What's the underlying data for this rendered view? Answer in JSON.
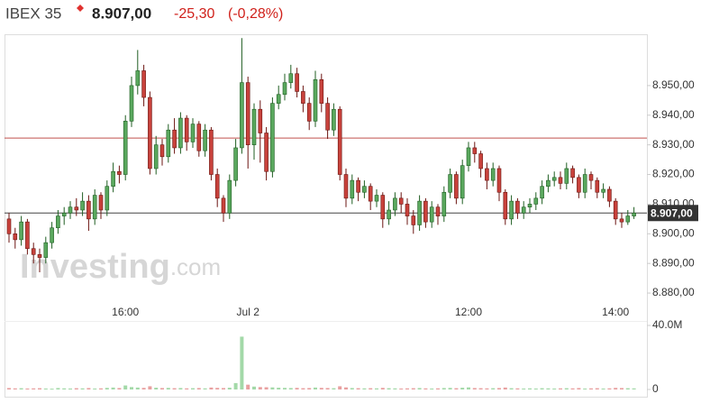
{
  "header": {
    "name": "IBEX 35",
    "price": "8.907,00",
    "change": "-25,30",
    "change_pct": "(-0,28%)"
  },
  "watermark": {
    "brand": "Investing",
    "suffix": ".com"
  },
  "chart_data": {
    "type": "candlestick",
    "categories": [
      null,
      null,
      null,
      null,
      null,
      null,
      null,
      null,
      null,
      null,
      null,
      null,
      null,
      null,
      null,
      null,
      null,
      null,
      null,
      "16:00",
      null,
      null,
      null,
      null,
      null,
      null,
      null,
      null,
      null,
      null,
      null,
      null,
      null,
      null,
      null,
      null,
      null,
      null,
      null,
      "Jul 2",
      null,
      null,
      null,
      null,
      null,
      null,
      null,
      null,
      null,
      null,
      null,
      null,
      null,
      null,
      null,
      null,
      null,
      null,
      null,
      null,
      null,
      null,
      null,
      null,
      null,
      null,
      null,
      null,
      null,
      null,
      null,
      null,
      null,
      null,
      null,
      "12:00",
      null,
      null,
      null,
      null,
      null,
      null,
      null,
      null,
      null,
      null,
      null,
      null,
      null,
      null,
      null,
      null,
      null,
      null,
      null,
      null,
      null,
      null,
      null,
      "14:00",
      null,
      null,
      null
    ],
    "open": [
      8905,
      8900,
      8898,
      8904,
      8895,
      8893,
      8892,
      8897,
      8902,
      8906,
      8907,
      8909,
      8908,
      8911,
      8905,
      8913,
      8908,
      8916,
      8921,
      8920,
      8938,
      8950,
      8955,
      8946,
      8922,
      8930,
      8926,
      8935,
      8929,
      8939,
      8931,
      8937,
      8928,
      8935,
      8920,
      8912,
      8907,
      8918,
      8929,
      8951,
      8930,
      8942,
      8934,
      8921,
      8944,
      8947,
      8951,
      8954,
      8948,
      8944,
      8938,
      8952,
      8944,
      8935,
      8942,
      8920,
      8912,
      8918,
      8914,
      8916,
      8911,
      8913,
      8905,
      8908,
      8912,
      8910,
      8906,
      8903,
      8911,
      8904,
      8909,
      8906,
      8914,
      8920,
      8912,
      8923,
      8929,
      8927,
      8922,
      8918,
      8922,
      8914,
      8905,
      8911,
      8907,
      8909,
      8910,
      8912,
      8916,
      8918,
      8919,
      8917,
      8922,
      8919,
      8914,
      8920,
      8918,
      8914,
      8915,
      8911,
      8905,
      8904,
      8906
    ],
    "high": [
      8907,
      8902,
      8906,
      8905,
      8897,
      8895,
      8899,
      8904,
      8908,
      8909,
      8911,
      8912,
      8914,
      8913,
      8915,
      8914,
      8918,
      8924,
      8923,
      8940,
      8953,
      8962,
      8957,
      8948,
      8933,
      8932,
      8937,
      8939,
      8941,
      8940,
      8939,
      8938,
      8937,
      8936,
      8922,
      8913,
      8920,
      8932,
      8966,
      8953,
      8944,
      8945,
      8936,
      8946,
      8950,
      8954,
      8957,
      8956,
      8950,
      8946,
      8955,
      8954,
      8946,
      8944,
      8943,
      8922,
      8920,
      8919,
      8918,
      8917,
      8915,
      8914,
      8911,
      8914,
      8914,
      8912,
      8908,
      8913,
      8912,
      8911,
      8910,
      8916,
      8922,
      8921,
      8925,
      8931,
      8931,
      8928,
      8924,
      8924,
      8923,
      8915,
      8913,
      8912,
      8911,
      8912,
      8914,
      8918,
      8920,
      8921,
      8921,
      8924,
      8923,
      8920,
      8922,
      8921,
      8919,
      8917,
      8916,
      8912,
      8907,
      8908,
      8909
    ],
    "low": [
      8897,
      8895,
      8896,
      8893,
      8890,
      8887,
      8890,
      8895,
      8900,
      8903,
      8905,
      8906,
      8906,
      8901,
      8903,
      8905,
      8906,
      8914,
      8917,
      8918,
      8936,
      8947,
      8943,
      8920,
      8920,
      8923,
      8924,
      8927,
      8927,
      8928,
      8929,
      8926,
      8926,
      8918,
      8909,
      8904,
      8905,
      8916,
      8927,
      8922,
      8925,
      8924,
      8918,
      8919,
      8942,
      8945,
      8949,
      8946,
      8941,
      8935,
      8936,
      8941,
      8932,
      8933,
      8918,
      8909,
      8910,
      8911,
      8912,
      8908,
      8909,
      8902,
      8903,
      8906,
      8907,
      8903,
      8900,
      8901,
      8902,
      8902,
      8903,
      8904,
      8912,
      8910,
      8910,
      8921,
      8924,
      8919,
      8915,
      8916,
      8911,
      8903,
      8903,
      8905,
      8905,
      8907,
      8908,
      8910,
      8914,
      8916,
      8915,
      8915,
      8917,
      8912,
      8912,
      8915,
      8912,
      8912,
      8909,
      8903,
      8902,
      8903,
      8905
    ],
    "close": [
      8900,
      8898,
      8904,
      8895,
      8893,
      8892,
      8897,
      8902,
      8906,
      8907,
      8909,
      8908,
      8911,
      8905,
      8913,
      8908,
      8916,
      8921,
      8920,
      8938,
      8950,
      8955,
      8946,
      8922,
      8930,
      8926,
      8935,
      8929,
      8939,
      8931,
      8937,
      8928,
      8935,
      8920,
      8912,
      8907,
      8918,
      8929,
      8951,
      8930,
      8942,
      8934,
      8921,
      8944,
      8947,
      8951,
      8954,
      8948,
      8944,
      8938,
      8952,
      8944,
      8935,
      8942,
      8920,
      8912,
      8918,
      8914,
      8916,
      8911,
      8913,
      8905,
      8908,
      8912,
      8910,
      8906,
      8903,
      8911,
      8904,
      8909,
      8906,
      8914,
      8920,
      8912,
      8923,
      8929,
      8927,
      8922,
      8918,
      8922,
      8914,
      8905,
      8911,
      8907,
      8909,
      8910,
      8912,
      8916,
      8918,
      8919,
      8917,
      8922,
      8919,
      8914,
      8920,
      8918,
      8914,
      8915,
      8911,
      8905,
      8904,
      8906,
      8907
    ],
    "up_color": "#5aa85e",
    "down_color": "#c8423c",
    "ylim": [
      8875,
      8967
    ],
    "yticks": [
      {
        "value": 8880,
        "label": "8.880,00"
      },
      {
        "value": 8890,
        "label": "8.890,00"
      },
      {
        "value": 8900,
        "label": "8.900,00"
      },
      {
        "value": 8910,
        "label": "8.910,00"
      },
      {
        "value": 8920,
        "label": "8.920,00"
      },
      {
        "value": 8930,
        "label": "8.930,00"
      },
      {
        "value": 8940,
        "label": "8.940,00"
      },
      {
        "value": 8950,
        "label": "8.950,00"
      }
    ],
    "previous_close": 8932.3,
    "previous_close_color": "#c0504d",
    "current_price": 8907,
    "volume": {
      "values": [
        900000,
        700000,
        800000,
        600000,
        700000,
        800000,
        600000,
        500000,
        900000,
        700000,
        600000,
        800000,
        700000,
        900000,
        600000,
        700000,
        1000000,
        1200000,
        900000,
        2500000,
        1500000,
        1200000,
        1000000,
        2000000,
        1100000,
        900000,
        1000000,
        800000,
        900000,
        700000,
        800000,
        900000,
        700000,
        1200000,
        1000000,
        900000,
        1100000,
        4000000,
        33000000,
        3000000,
        1800000,
        1500000,
        1400000,
        1300000,
        1100000,
        1000000,
        900000,
        1000000,
        800000,
        900000,
        1200000,
        1000000,
        900000,
        800000,
        2000000,
        1300000,
        900000,
        800000,
        700000,
        800000,
        700000,
        1000000,
        800000,
        700000,
        600000,
        700000,
        800000,
        900000,
        700000,
        600000,
        700000,
        900000,
        1000000,
        800000,
        1100000,
        1300000,
        900000,
        800000,
        700000,
        800000,
        900000,
        1200000,
        800000,
        700000,
        600000,
        700000,
        600000,
        800000,
        700000,
        600000,
        700000,
        800000,
        700000,
        900000,
        600000,
        700000,
        800000,
        600000,
        700000,
        1000000,
        900000,
        800000,
        700000
      ],
      "up_color": "#a3d9a8",
      "down_color": "#e8a0a0",
      "ylim": [
        0,
        41000000
      ],
      "yticks": [
        0,
        {
          "value": 40000000,
          "label": "40.0M"
        }
      ]
    }
  }
}
